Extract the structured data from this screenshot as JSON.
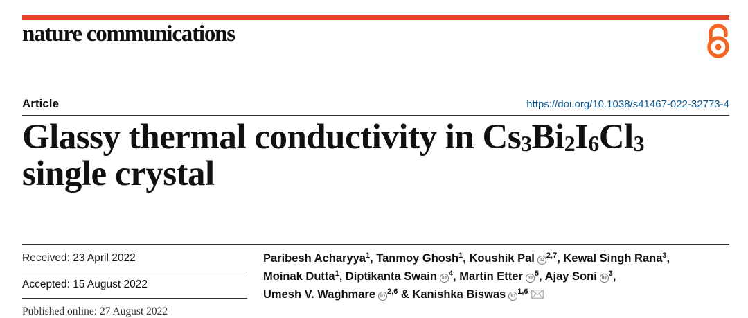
{
  "header": {
    "journal": "nature communications",
    "open_access_icon": "open-access-lock-icon",
    "accent_color": "#e8412e"
  },
  "article": {
    "type": "Article",
    "doi": "https://doi.org/10.1038/s41467-022-32773-4",
    "title": {
      "line1_text": "Glassy thermal conductivity in ",
      "formula": [
        {
          "text": "Cs",
          "sub": "3"
        },
        {
          "text": "Bi",
          "sub": "2"
        },
        {
          "text": "I",
          "sub": "6"
        },
        {
          "text": "Cl",
          "sub": "3"
        }
      ],
      "line2": "single crystal"
    },
    "received": "Received: 23 April 2022",
    "accepted": "Accepted: 15 August 2022",
    "published": "Published online: 27 August 2022",
    "authors": [
      {
        "name": "Paribesh Acharyya",
        "sup": "1"
      },
      {
        "name": "Tanmoy Ghosh",
        "sup": "1"
      },
      {
        "name": "Koushik Pal",
        "sup": "2,7"
      },
      {
        "name": "Kewal Singh Rana",
        "sup": "3"
      },
      {
        "name": "Moinak Dutta",
        "sup": "1"
      },
      {
        "name": "Diptikanta Swain",
        "sup": "4"
      },
      {
        "name": "Martin Etter",
        "sup": "5"
      },
      {
        "name": "Ajay Soni",
        "sup": "3"
      },
      {
        "name": "Umesh V. Waghmare",
        "sup": "2,6"
      },
      {
        "name": "Kanishka Biswas",
        "sup": "1,6"
      }
    ],
    "orcid_icon": "orcid-icon",
    "mail_icon": "mail-icon"
  }
}
